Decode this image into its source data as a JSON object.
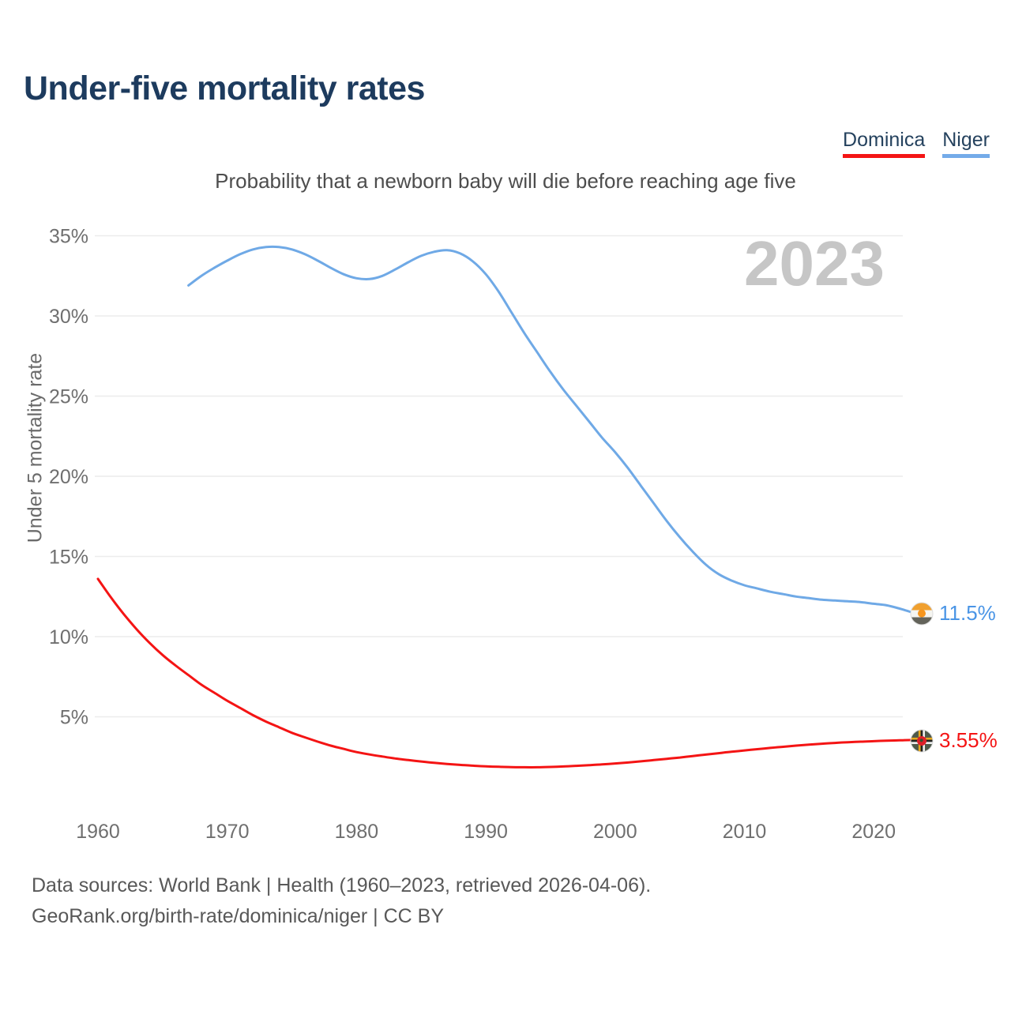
{
  "header": {
    "title": "Under-five mortality rates"
  },
  "legend": {
    "items": [
      {
        "label": "Dominica",
        "color": "#f41414"
      },
      {
        "label": "Niger",
        "color": "#74abe9"
      }
    ]
  },
  "chart_data": {
    "type": "line",
    "title": "Under-five mortality rates",
    "subtitle": "Probability that a newborn baby will die before reaching age five",
    "year_annotation": "2023",
    "xlabel": "",
    "ylabel": "Under 5 mortality rate",
    "grid": "horizontal",
    "legend_position": "top-right",
    "xlim": [
      1959.5,
      2023
    ],
    "ylim": [
      0,
      36.5
    ],
    "x_ticks": [
      1960,
      1970,
      1980,
      1990,
      2000,
      2010,
      2020
    ],
    "y_ticks": [
      {
        "value": 35,
        "label": "35%"
      },
      {
        "value": 30,
        "label": "30%"
      },
      {
        "value": 25,
        "label": "25%"
      },
      {
        "value": 20,
        "label": "20%"
      },
      {
        "value": 15,
        "label": "15%"
      },
      {
        "value": 10,
        "label": "10%"
      },
      {
        "value": 5,
        "label": "5%"
      }
    ],
    "series": [
      {
        "name": "Dominica",
        "color": "#f41414",
        "label_color": "#f41414",
        "end_label": "3.55%",
        "flag": "dominica",
        "points": [
          [
            1960,
            13.6
          ],
          [
            1961,
            12.45
          ],
          [
            1962,
            11.4
          ],
          [
            1963,
            10.45
          ],
          [
            1964,
            9.6
          ],
          [
            1965,
            8.85
          ],
          [
            1966,
            8.2
          ],
          [
            1967,
            7.6
          ],
          [
            1968,
            7.0
          ],
          [
            1969,
            6.5
          ],
          [
            1970,
            6.0
          ],
          [
            1971,
            5.55
          ],
          [
            1972,
            5.1
          ],
          [
            1973,
            4.7
          ],
          [
            1974,
            4.35
          ],
          [
            1975,
            4.0
          ],
          [
            1976,
            3.72
          ],
          [
            1977,
            3.45
          ],
          [
            1978,
            3.2
          ],
          [
            1979,
            3.0
          ],
          [
            1980,
            2.8
          ],
          [
            1981,
            2.65
          ],
          [
            1982,
            2.52
          ],
          [
            1983,
            2.4
          ],
          [
            1984,
            2.3
          ],
          [
            1985,
            2.21
          ],
          [
            1986,
            2.13
          ],
          [
            1987,
            2.06
          ],
          [
            1988,
            2.0
          ],
          [
            1989,
            1.95
          ],
          [
            1990,
            1.91
          ],
          [
            1991,
            1.88
          ],
          [
            1992,
            1.86
          ],
          [
            1993,
            1.85
          ],
          [
            1994,
            1.85
          ],
          [
            1995,
            1.87
          ],
          [
            1996,
            1.9
          ],
          [
            1997,
            1.94
          ],
          [
            1998,
            1.98
          ],
          [
            1999,
            2.03
          ],
          [
            2000,
            2.09
          ],
          [
            2001,
            2.15
          ],
          [
            2002,
            2.22
          ],
          [
            2003,
            2.3
          ],
          [
            2004,
            2.38
          ],
          [
            2005,
            2.46
          ],
          [
            2006,
            2.55
          ],
          [
            2007,
            2.64
          ],
          [
            2008,
            2.73
          ],
          [
            2009,
            2.82
          ],
          [
            2010,
            2.9
          ],
          [
            2011,
            2.98
          ],
          [
            2012,
            3.06
          ],
          [
            2013,
            3.13
          ],
          [
            2014,
            3.2
          ],
          [
            2015,
            3.26
          ],
          [
            2016,
            3.32
          ],
          [
            2017,
            3.37
          ],
          [
            2018,
            3.41
          ],
          [
            2019,
            3.45
          ],
          [
            2020,
            3.48
          ],
          [
            2021,
            3.51
          ],
          [
            2022,
            3.53
          ],
          [
            2023,
            3.55
          ]
        ]
      },
      {
        "name": "Niger",
        "color": "#6fa9e6",
        "label_color": "#4a95e6",
        "end_label": "11.5%",
        "flag": "niger",
        "points": [
          [
            1967,
            31.9
          ],
          [
            1968,
            32.5
          ],
          [
            1969,
            33.0
          ],
          [
            1970,
            33.45
          ],
          [
            1971,
            33.85
          ],
          [
            1972,
            34.15
          ],
          [
            1973,
            34.3
          ],
          [
            1974,
            34.3
          ],
          [
            1975,
            34.15
          ],
          [
            1976,
            33.85
          ],
          [
            1977,
            33.45
          ],
          [
            1978,
            33.0
          ],
          [
            1979,
            32.6
          ],
          [
            1980,
            32.35
          ],
          [
            1981,
            32.3
          ],
          [
            1982,
            32.5
          ],
          [
            1983,
            32.9
          ],
          [
            1984,
            33.35
          ],
          [
            1985,
            33.75
          ],
          [
            1986,
            34.0
          ],
          [
            1987,
            34.1
          ],
          [
            1988,
            33.9
          ],
          [
            1989,
            33.4
          ],
          [
            1990,
            32.6
          ],
          [
            1991,
            31.5
          ],
          [
            1992,
            30.2
          ],
          [
            1993,
            28.9
          ],
          [
            1994,
            27.7
          ],
          [
            1995,
            26.5
          ],
          [
            1996,
            25.4
          ],
          [
            1997,
            24.4
          ],
          [
            1998,
            23.4
          ],
          [
            1999,
            22.4
          ],
          [
            2000,
            21.5
          ],
          [
            2001,
            20.5
          ],
          [
            2002,
            19.4
          ],
          [
            2003,
            18.3
          ],
          [
            2004,
            17.2
          ],
          [
            2005,
            16.2
          ],
          [
            2006,
            15.3
          ],
          [
            2007,
            14.5
          ],
          [
            2008,
            13.9
          ],
          [
            2009,
            13.5
          ],
          [
            2010,
            13.2
          ],
          [
            2011,
            13.0
          ],
          [
            2012,
            12.8
          ],
          [
            2013,
            12.65
          ],
          [
            2014,
            12.5
          ],
          [
            2015,
            12.4
          ],
          [
            2016,
            12.3
          ],
          [
            2017,
            12.25
          ],
          [
            2018,
            12.2
          ],
          [
            2019,
            12.15
          ],
          [
            2020,
            12.05
          ],
          [
            2021,
            11.95
          ],
          [
            2022,
            11.75
          ],
          [
            2023,
            11.5
          ]
        ]
      }
    ]
  },
  "footer": {
    "line1": "Data sources: World Bank | Health (1960–2023, retrieved 2026-04-06).",
    "line2": "GeoRank.org/birth-rate/dominica/niger | CC BY"
  }
}
